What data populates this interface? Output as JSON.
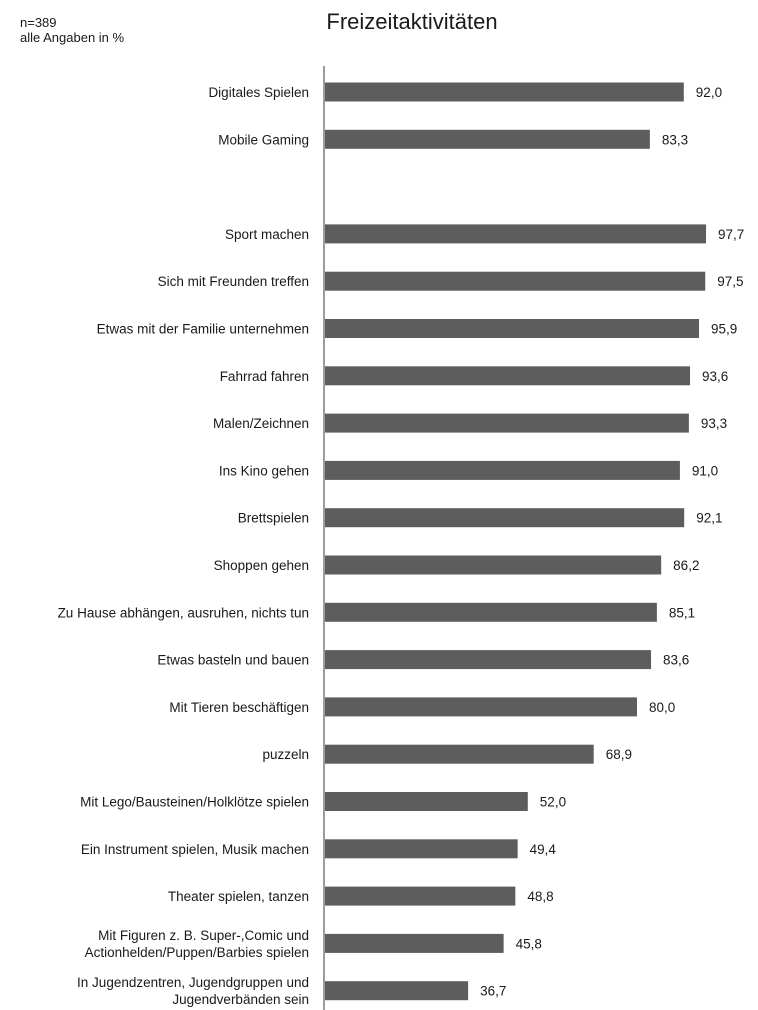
{
  "notes": {
    "n": "n=389",
    "unit": "alle Angaben in %"
  },
  "chart_data": {
    "type": "bar",
    "orientation": "horizontal",
    "title": "Freizeitaktivitäten",
    "xlabel": "",
    "ylabel": "",
    "xlim": [
      0,
      100
    ],
    "grid": false,
    "legend": "none",
    "bar_color": "#5d5d5d",
    "categories": [
      [
        "Digitales Spielen"
      ],
      [
        "Mobile Gaming"
      ],
      [],
      [
        "Sport machen"
      ],
      [
        "Sich mit Freunden treffen"
      ],
      [
        "Etwas mit der Familie unternehmen"
      ],
      [
        "Fahrrad fahren"
      ],
      [
        "Malen/Zeichnen"
      ],
      [
        "Ins Kino gehen"
      ],
      [
        "Brettspielen"
      ],
      [
        "Shoppen gehen"
      ],
      [
        "Zu Hause abhängen, ausruhen, nichts tun"
      ],
      [
        "Etwas basteln und bauen"
      ],
      [
        "Mit Tieren beschäftigen"
      ],
      [
        "puzzeln"
      ],
      [
        "Mit Lego/Bausteinen/Holklötze spielen"
      ],
      [
        "Ein Instrument spielen, Musik machen"
      ],
      [
        "Theater spielen, tanzen"
      ],
      [
        "Mit Figuren z. B. Super-,Comic und",
        "Actionhelden/Puppen/Barbies spielen"
      ],
      [
        "In Jugendzentren, Jugendgruppen und",
        "Jugendverbänden sein"
      ]
    ],
    "values": [
      92.0,
      83.3,
      null,
      97.7,
      97.5,
      95.9,
      93.6,
      93.3,
      91.0,
      92.1,
      86.2,
      85.1,
      83.6,
      80.0,
      68.9,
      52.0,
      49.4,
      48.8,
      45.8,
      36.7
    ],
    "value_labels": [
      "92,0",
      "83,3",
      "",
      "97,7",
      "97,5",
      "95,9",
      "93,6",
      "93,3",
      "91,0",
      "92,1",
      "86,2",
      "85,1",
      "83,6",
      "80,0",
      "68,9",
      "52,0",
      "49,4",
      "48,8",
      "45,8",
      "36,7"
    ]
  }
}
